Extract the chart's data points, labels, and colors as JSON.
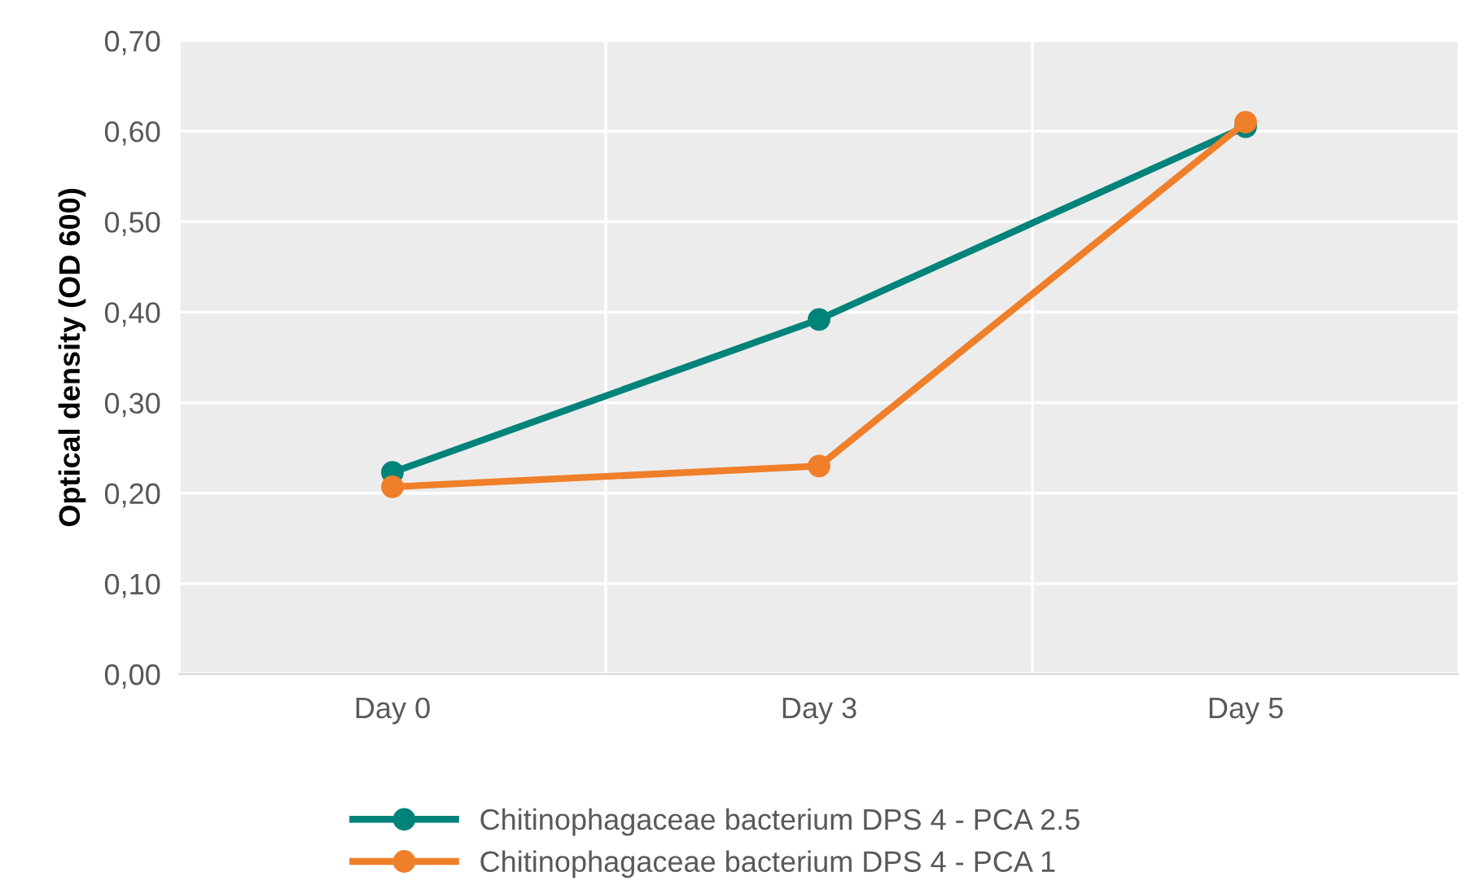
{
  "chart_data": {
    "type": "line",
    "ylabel": "Optical density (OD 600)",
    "categories": [
      "Day 0",
      "Day 3",
      "Day 5"
    ],
    "series": [
      {
        "name": "Chitinophagaceae bacterium DPS 4 - PCA 2.5",
        "color": "#00837a",
        "values": [
          0.223,
          0.392,
          0.605
        ]
      },
      {
        "name": "Chitinophagaceae bacterium DPS 4 - PCA 1",
        "color": "#f07f2a",
        "values": [
          0.207,
          0.23,
          0.61
        ]
      }
    ],
    "ylim": [
      0,
      0.7
    ],
    "yticks": [
      {
        "value": 0,
        "label": "0,00"
      },
      {
        "value": 0.1,
        "label": "0,10"
      },
      {
        "value": 0.2,
        "label": "0,20"
      },
      {
        "value": 0.3,
        "label": "0,30"
      },
      {
        "value": 0.4,
        "label": "0,40"
      },
      {
        "value": 0.5,
        "label": "0,50"
      },
      {
        "value": 0.6,
        "label": "0,60"
      },
      {
        "value": 0.7,
        "label": "0,70"
      }
    ],
    "grid": true,
    "legend": "bottom",
    "marker": "circle",
    "line_style": "solid"
  }
}
